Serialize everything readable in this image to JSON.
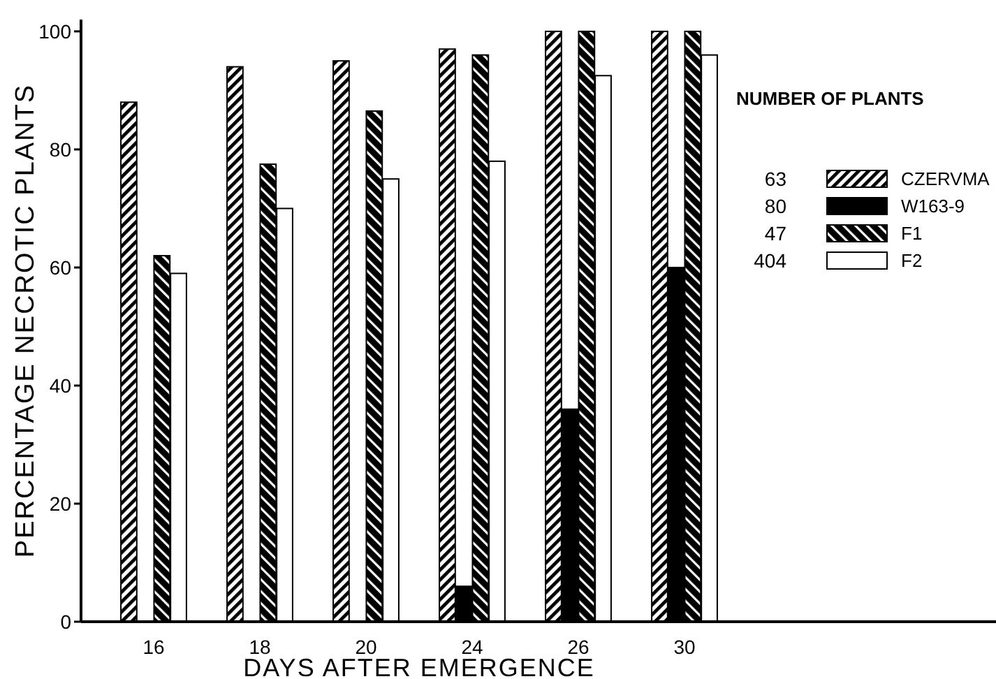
{
  "chart_data": {
    "type": "bar",
    "xlabel": "DAYS AFTER EMERGENCE",
    "ylabel": "PERCENTAGE NECROTIC PLANTS",
    "legend_title": "NUMBER OF PLANTS",
    "categories": [
      "16",
      "18",
      "20",
      "24",
      "26",
      "30"
    ],
    "series": [
      {
        "name": "CZERVMA",
        "color": "#000000",
        "values": [
          88,
          94,
          95,
          97,
          100,
          100
        ]
      },
      {
        "name": "W163-9",
        "color": "#000000",
        "values": [
          0,
          0,
          0,
          6,
          36,
          60
        ]
      },
      {
        "name": "F1",
        "color": "#000000",
        "values": [
          62,
          77.5,
          86.5,
          96,
          100,
          100
        ]
      },
      {
        "name": "F2",
        "color": "#ffffff",
        "values": [
          59,
          70,
          75,
          78,
          92.5,
          96
        ]
      }
    ],
    "annotations": [
      "63",
      "80",
      "47",
      "404"
    ],
    "ylim": [
      0,
      102
    ],
    "yticks": [
      0,
      20,
      40,
      60,
      80,
      100
    ],
    "legend": "right",
    "grid": false
  }
}
